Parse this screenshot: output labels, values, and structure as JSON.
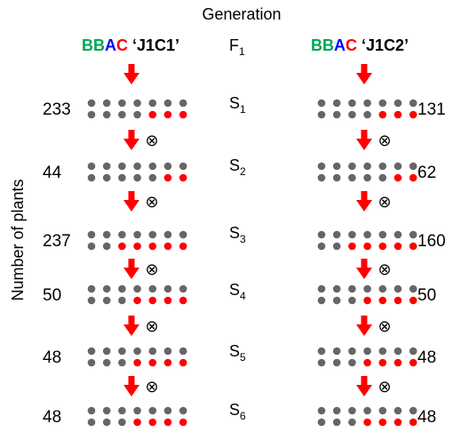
{
  "header": {
    "title": "Generation"
  },
  "y_axis": {
    "label": "Number of plants"
  },
  "colors": {
    "B": "#00a651",
    "A": "#0000ff",
    "C": "#ff0000",
    "dot_gray": "#666666",
    "dot_red": "#ff0000",
    "arrow": "#ff0000",
    "text": "#000000"
  },
  "lines": [
    {
      "genome": [
        {
          "letter": "B",
          "color": "#00a651"
        },
        {
          "letter": "B",
          "color": "#00a651"
        },
        {
          "letter": "A",
          "color": "#0000ff"
        },
        {
          "letter": "C",
          "color": "#ff0000"
        }
      ],
      "name": "‘J1C1’"
    },
    {
      "genome": [
        {
          "letter": "B",
          "color": "#00a651"
        },
        {
          "letter": "B",
          "color": "#00a651"
        },
        {
          "letter": "A",
          "color": "#0000ff"
        },
        {
          "letter": "C",
          "color": "#ff0000"
        }
      ],
      "name": "‘J1C2’"
    }
  ],
  "generations": [
    {
      "base": "F",
      "sub": "1"
    },
    {
      "base": "S",
      "sub": "1"
    },
    {
      "base": "S",
      "sub": "2"
    },
    {
      "base": "S",
      "sub": "3"
    },
    {
      "base": "S",
      "sub": "4"
    },
    {
      "base": "S",
      "sub": "5"
    },
    {
      "base": "S",
      "sub": "6"
    }
  ],
  "selfing_symbol": "⊗",
  "rows": [
    {
      "gen": "S1",
      "left_count": "233",
      "right_count": "131",
      "left_red_top": 0,
      "left_red_bottom": 3,
      "right_red_top": 0,
      "right_red_bottom": 3
    },
    {
      "gen": "S2",
      "left_count": "44",
      "right_count": "62",
      "left_red_top": 0,
      "left_red_bottom": 2,
      "right_red_top": 0,
      "right_red_bottom": 2
    },
    {
      "gen": "S3",
      "left_count": "237",
      "right_count": "160",
      "left_red_top": 0,
      "left_red_bottom": 5,
      "right_red_top": 0,
      "right_red_bottom": 5
    },
    {
      "gen": "S4",
      "left_count": "50",
      "right_count": "50",
      "left_red_top": 0,
      "left_red_bottom": 4,
      "right_red_top": 0,
      "right_red_bottom": 4
    },
    {
      "gen": "S5",
      "left_count": "48",
      "right_count": "48",
      "left_red_top": 0,
      "left_red_bottom": 4,
      "right_red_top": 0,
      "right_red_bottom": 4
    },
    {
      "gen": "S6",
      "left_count": "48",
      "right_count": "48",
      "left_red_top": 0,
      "left_red_bottom": 4,
      "right_red_top": 0,
      "right_red_bottom": 4
    }
  ]
}
